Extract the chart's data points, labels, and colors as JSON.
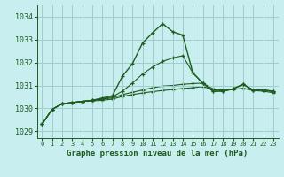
{
  "title": "Graphe pression niveau de la mer (hPa)",
  "xlabel_ticks": [
    0,
    1,
    2,
    3,
    4,
    5,
    6,
    7,
    8,
    9,
    10,
    11,
    12,
    13,
    14,
    15,
    16,
    17,
    18,
    19,
    20,
    21,
    22,
    23
  ],
  "ylim": [
    1028.7,
    1034.5
  ],
  "yticks": [
    1029,
    1030,
    1031,
    1032,
    1033,
    1034
  ],
  "background_color": "#c8eef0",
  "grid_color": "#a0cccc",
  "line_color": "#1e5c1e",
  "series": [
    [
      1029.3,
      1029.95,
      1030.2,
      1030.25,
      1030.3,
      1030.35,
      1030.45,
      1030.55,
      1031.4,
      1031.95,
      1032.85,
      1033.3,
      1033.7,
      1033.35,
      1033.2,
      1031.55,
      1031.1,
      1030.75,
      1030.75,
      1030.85,
      1031.05,
      1030.8,
      1030.8,
      1030.75
    ],
    [
      1029.3,
      1029.95,
      1030.2,
      1030.25,
      1030.3,
      1030.35,
      1030.4,
      1030.5,
      1030.75,
      1031.1,
      1031.5,
      1031.8,
      1032.05,
      1032.2,
      1032.3,
      1031.55,
      1031.1,
      1030.75,
      1030.75,
      1030.85,
      1031.05,
      1030.8,
      1030.8,
      1030.75
    ],
    [
      1029.3,
      1029.95,
      1030.2,
      1030.25,
      1030.3,
      1030.35,
      1030.4,
      1030.45,
      1030.6,
      1030.7,
      1030.8,
      1030.9,
      1030.97,
      1031.0,
      1031.05,
      1031.08,
      1031.1,
      1030.85,
      1030.8,
      1030.85,
      1031.05,
      1030.8,
      1030.8,
      1030.72
    ],
    [
      1029.3,
      1029.95,
      1030.2,
      1030.25,
      1030.3,
      1030.32,
      1030.35,
      1030.4,
      1030.52,
      1030.6,
      1030.67,
      1030.73,
      1030.78,
      1030.82,
      1030.87,
      1030.9,
      1030.95,
      1030.82,
      1030.78,
      1030.82,
      1030.88,
      1030.78,
      1030.75,
      1030.68
    ]
  ]
}
